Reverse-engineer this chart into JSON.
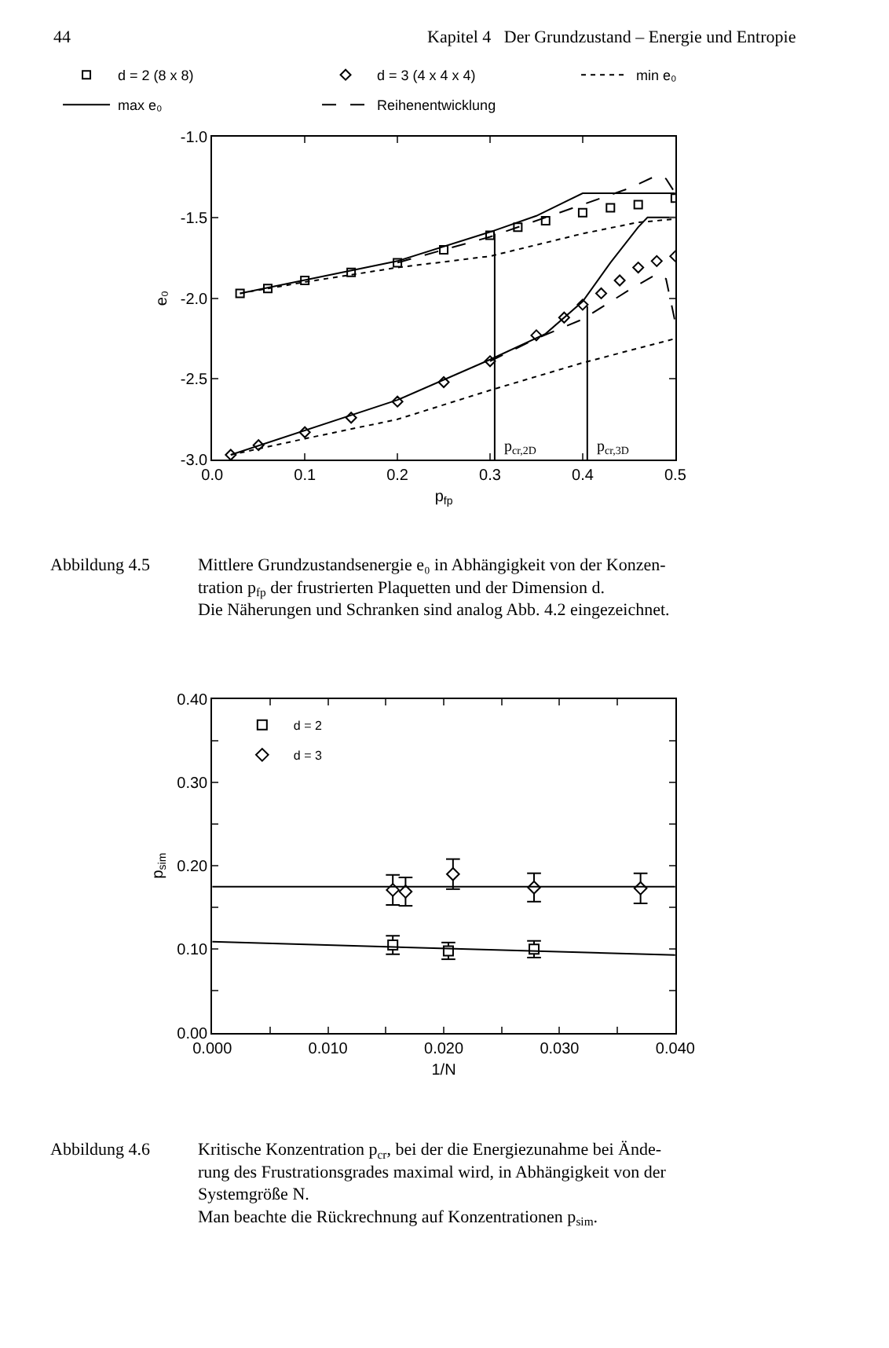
{
  "chart_data": [
    {
      "type": "line",
      "xlabel": "p$_{fp}$",
      "ylabel": "e₀",
      "xlim": [
        0.0,
        0.5
      ],
      "ylim": [
        -3.0,
        -1.0
      ],
      "xticks": [
        {
          "value": 0.0,
          "label": "0.0"
        },
        0.1,
        0.2,
        0.3,
        0.4,
        0.5
      ],
      "yticks": [
        {
          "value": -3.0,
          "label": "-3.0"
        },
        -2.5,
        {
          "value": -2.0,
          "label": "-2.0"
        },
        -1.5,
        {
          "value": -1.0,
          "label": "-1.0"
        }
      ],
      "legend": "top",
      "series": [
        {
          "name": "d = 2 (8 x 8)",
          "type": "scatter",
          "marker": "square",
          "color": "#000000",
          "x": [
            0.03,
            0.06,
            0.1,
            0.15,
            0.2,
            0.25,
            0.3,
            0.33,
            0.36,
            0.4,
            0.43,
            0.46,
            0.5
          ],
          "values": [
            -1.97,
            -1.94,
            -1.89,
            -1.84,
            -1.78,
            -1.7,
            -1.61,
            -1.56,
            -1.52,
            -1.47,
            -1.44,
            -1.42,
            -1.38
          ]
        },
        {
          "name": "d = 3 (4 x 4 x 4)",
          "type": "scatter",
          "marker": "diamond",
          "color": "#000000",
          "x": [
            0.02,
            0.05,
            0.1,
            0.15,
            0.2,
            0.25,
            0.3,
            0.35,
            0.38,
            0.4,
            0.42,
            0.44,
            0.46,
            0.48,
            0.5
          ],
          "values": [
            -2.97,
            -2.91,
            -2.83,
            -2.74,
            -2.64,
            -2.52,
            -2.39,
            -2.23,
            -2.12,
            -2.04,
            -1.97,
            -1.89,
            -1.81,
            -1.77,
            -1.74
          ]
        },
        {
          "name": "min e₀",
          "line_style": "dotted",
          "color": "#000000",
          "x": [
            0.03,
            0.1,
            0.2,
            0.3,
            0.4,
            0.46,
            0.5,
            null,
            0.02,
            0.1,
            0.2,
            0.3,
            0.4,
            0.5
          ],
          "values": [
            -1.97,
            -1.9,
            -1.81,
            -1.74,
            -1.6,
            -1.53,
            -1.51,
            null,
            -2.97,
            -2.87,
            -2.75,
            -2.57,
            -2.4,
            -2.25
          ]
        },
        {
          "name": "max e₀",
          "line_style": "solid",
          "color": "#000000",
          "x": [
            0.03,
            0.2,
            0.3,
            0.35,
            0.4,
            0.5,
            null,
            0.02,
            0.2,
            0.3,
            0.36,
            0.4,
            0.43,
            0.46,
            0.47,
            0.5
          ],
          "values": [
            -1.97,
            -1.77,
            -1.59,
            -1.49,
            -1.35,
            -1.35,
            null,
            -2.97,
            -2.63,
            -2.38,
            -2.22,
            -2.02,
            -1.78,
            -1.56,
            -1.5,
            -1.5
          ]
        },
        {
          "name": "Reihenentwicklung",
          "line_style": "dashed",
          "color": "#000000",
          "x": [
            0.2,
            0.3,
            0.4,
            0.45,
            0.48,
            0.49,
            0.5,
            null,
            0.3,
            0.35,
            0.4,
            0.45,
            0.48,
            0.49,
            0.5
          ],
          "values": [
            -1.78,
            -1.62,
            -1.42,
            -1.32,
            -1.24,
            -1.26,
            -1.35,
            null,
            -2.39,
            -2.25,
            -2.13,
            -1.95,
            -1.85,
            -1.88,
            -2.15
          ]
        },
        {
          "line_style": "solid",
          "color": "#000000",
          "x": [
            0.305,
            0.305
          ],
          "values": [
            -3.0,
            -1.6
          ]
        },
        {
          "line_style": "solid",
          "color": "#000000",
          "x": [
            0.405,
            0.405
          ],
          "values": [
            -3.0,
            -2.05
          ]
        }
      ],
      "annotations": [
        "44",
        "Kapitel 4   Der Grundzustand – Energie und Entropie",
        "Abbildung 4.5",
        "Mittlere Grundzustandsenergie e₀ in Abhängigkeit von der Konzen-\ntration p$_{fp}$ der frustrierten Plaquetten und der Dimension d.\nDie Näherungen und Schranken sind analog Abb. 4.2 eingezeichnet.",
        {
          "text": "p$_{cr,2D}$",
          "x": 0.305,
          "y": -3.0
        },
        {
          "text": "p$_{cr,3D}$",
          "x": 0.405,
          "y": -3.0
        }
      ]
    },
    {
      "type": "scatter",
      "xlabel": "1/N",
      "ylabel": "p$_{sim}$",
      "xlim": [
        0.0,
        0.04
      ],
      "ylim": [
        0.0,
        0.4
      ],
      "xticks": [
        {
          "value": 0.0,
          "label": "0.000"
        },
        {
          "value": 0.005,
          "label": null
        },
        {
          "value": 0.01,
          "label": "0.010"
        },
        {
          "value": 0.015,
          "label": null
        },
        {
          "value": 0.02,
          "label": "0.020"
        },
        {
          "value": 0.025,
          "label": null
        },
        {
          "value": 0.03,
          "label": "0.030"
        },
        {
          "value": 0.035,
          "label": null
        },
        {
          "value": 0.04,
          "label": "0.040"
        }
      ],
      "yticks": [
        {
          "value": 0.0,
          "label": "0.00"
        },
        {
          "value": 0.05,
          "label": null
        },
        {
          "value": 0.1,
          "label": "0.10"
        },
        {
          "value": 0.15,
          "label": null
        },
        {
          "value": 0.2,
          "label": "0.20"
        },
        {
          "value": 0.25,
          "label": null
        },
        {
          "value": 0.3,
          "label": "0.30"
        },
        {
          "value": 0.35,
          "label": null
        },
        {
          "value": 0.4,
          "label": "0.40"
        }
      ],
      "legend": "top left",
      "series": [
        {
          "name": "d = 2",
          "marker": "square",
          "color": "#000000",
          "x": [
            0.0156,
            0.0204,
            0.0278
          ],
          "values": [
            0.105,
            0.098,
            0.1
          ],
          "errors": [
            0.011,
            0.01,
            0.01
          ]
        },
        {
          "name": "d = 3",
          "marker": "diamond",
          "color": "#000000",
          "x": [
            0.0156,
            0.0167,
            0.0208,
            0.0278,
            0.037
          ],
          "values": [
            0.171,
            0.169,
            0.19,
            0.174,
            0.173
          ],
          "errors": [
            0.018,
            0.017,
            0.018,
            0.017,
            0.018
          ]
        },
        {
          "type": "line",
          "line_style": "solid",
          "color": "#000000",
          "x": [
            0.0,
            0.04
          ],
          "values": [
            0.109,
            0.093
          ]
        },
        {
          "type": "line",
          "line_style": "solid",
          "color": "#000000",
          "x": [
            0.0,
            0.04
          ],
          "values": [
            0.175,
            0.175
          ]
        }
      ],
      "annotations": [
        "Abbildung 4.6",
        "Kritische Konzentration p$_{cr}$, bei der die Energiezunahme bei Ände-\nrung des Frustrationsgrades maximal wird, in Abhängigkeit von der\nSystemgröße N.\nMan beachte die Rückrechnung auf Konzentrationen p$_{sim}$."
      ]
    }
  ]
}
